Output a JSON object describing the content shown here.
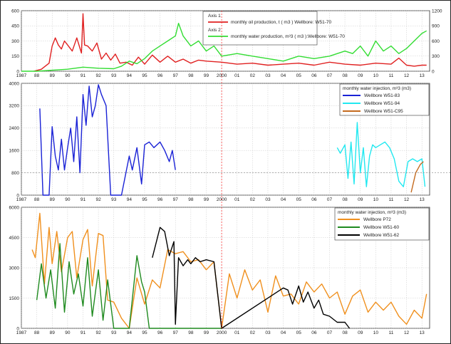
{
  "colors": {
    "oil": "#e02020",
    "water_prod": "#33dd33",
    "w51_83": "#1a22d6",
    "w51_94": "#22e8f0",
    "w51_c95": "#c46a1e",
    "p72": "#f0901e",
    "w51_60": "#1f8a1f",
    "w51_62": "#000000",
    "grid": "#bbbbbb",
    "crosshair": "#ff2222"
  },
  "chart_data": [
    {
      "type": "line",
      "panel": "top",
      "x_ticks": [
        "1987",
        "88",
        "89",
        "90",
        "91",
        "92",
        "93",
        "94",
        "95",
        "96",
        "97",
        "98",
        "99",
        "2000",
        "01",
        "02",
        "03",
        "04",
        "05",
        "06",
        "07",
        "08",
        "09",
        "10",
        "11",
        "12",
        "13"
      ],
      "xlim": [
        1987,
        2013.5
      ],
      "y_ticks_left": [
        "0",
        "150",
        "300",
        "450",
        "600"
      ],
      "ylim_left": [
        0,
        600
      ],
      "y_ticks_right": [
        "0",
        "300",
        "600",
        "900",
        "1200"
      ],
      "ylim_right": [
        0,
        1200
      ],
      "legend": {
        "axis1_label": "Axis 1",
        "axis1_series": "monthly oil production,  t ( m3 ) Wellbore: W51-70",
        "axis2_label": "Axis 2",
        "axis2_series": "monthly water production,  m³3 ( m3 ):Wellbore: W51-70"
      },
      "series": [
        {
          "key": "oil",
          "axis": "left",
          "x": [
            1987.8,
            1988.3,
            1988.8,
            1989.0,
            1989.2,
            1989.4,
            1989.6,
            1989.8,
            1990.0,
            1990.3,
            1990.6,
            1990.9,
            1991.0,
            1991.1,
            1991.3,
            1991.6,
            1991.9,
            1992.2,
            1992.5,
            1992.8,
            1993.1,
            1993.4,
            1993.8,
            1994.2,
            1994.6,
            1995.0,
            1995.5,
            1996.0,
            1996.5,
            1997.0,
            1997.5,
            1998.0,
            1998.5,
            1999.0,
            2000.0,
            2001.0,
            2002.0,
            2003.0,
            2004.0,
            2005.0,
            2006.0,
            2007.0,
            2008.0,
            2009.0,
            2010.0,
            2011.0,
            2011.5,
            2012.0,
            2012.5,
            2013.0,
            2013.3
          ],
          "y": [
            0,
            20,
            80,
            250,
            330,
            260,
            220,
            300,
            260,
            200,
            330,
            180,
            570,
            260,
            250,
            200,
            280,
            120,
            180,
            110,
            170,
            80,
            90,
            60,
            140,
            70,
            160,
            90,
            150,
            90,
            120,
            80,
            110,
            100,
            90,
            70,
            80,
            60,
            70,
            80,
            60,
            90,
            70,
            60,
            80,
            70,
            130,
            60,
            50,
            60,
            60
          ]
        },
        {
          "key": "water_prod",
          "axis": "right",
          "x": [
            1987.0,
            1988.0,
            1989.0,
            1990.0,
            1991.0,
            1992.0,
            1993.0,
            1993.5,
            1994.0,
            1994.5,
            1995.0,
            1995.5,
            1996.0,
            1996.5,
            1997.0,
            1997.2,
            1997.5,
            1998.0,
            1998.5,
            1999.0,
            1999.5,
            2000.0,
            2001.0,
            2002.0,
            2003.0,
            2004.0,
            2005.0,
            2006.0,
            2007.0,
            2008.0,
            2008.5,
            2009.0,
            2009.5,
            2010.0,
            2010.5,
            2011.0,
            2011.5,
            2012.0,
            2012.5,
            2013.0,
            2013.3
          ],
          "y": [
            0,
            0,
            20,
            40,
            80,
            60,
            50,
            100,
            200,
            150,
            250,
            400,
            500,
            600,
            700,
            950,
            700,
            500,
            600,
            400,
            500,
            300,
            350,
            300,
            250,
            200,
            300,
            250,
            300,
            400,
            350,
            500,
            300,
            600,
            400,
            500,
            350,
            450,
            600,
            750,
            800
          ]
        }
      ]
    },
    {
      "type": "line",
      "panel": "middle",
      "x_ticks": [
        "1987",
        "88",
        "89",
        "90",
        "91",
        "92",
        "93",
        "94",
        "95",
        "96",
        "97",
        "98",
        "99",
        "2000",
        "01",
        "02",
        "03",
        "04",
        "05",
        "06",
        "07",
        "08",
        "09",
        "10",
        "11",
        "12",
        "13"
      ],
      "xlim": [
        1987,
        2013.5
      ],
      "y_ticks": [
        "0",
        "800",
        "1600",
        "2400",
        "3200",
        "4000"
      ],
      "ylim": [
        0,
        4000
      ],
      "legend": {
        "title": "monthly water injection,  m³3  (m3)",
        "entries": [
          "Wellbore W51-83",
          "Wellbore W51-94",
          "Wellbore W51-C95"
        ]
      },
      "series": [
        {
          "key": "w51_83",
          "x": [
            1988.2,
            1988.4,
            1988.6,
            1988.8,
            1989.0,
            1989.2,
            1989.4,
            1989.6,
            1989.8,
            1990.0,
            1990.2,
            1990.4,
            1990.6,
            1990.8,
            1991.0,
            1991.2,
            1991.4,
            1991.6,
            1991.8,
            1992.0,
            1992.2,
            1992.5,
            1992.8,
            1993.0,
            1993.5,
            1994.0,
            1994.2,
            1994.5,
            1994.8,
            1995.0,
            1995.3,
            1995.6,
            1996.0,
            1996.3,
            1996.6,
            1996.8,
            1997.0
          ],
          "y": [
            3100,
            0,
            0,
            0,
            2450,
            1400,
            900,
            2000,
            900,
            1700,
            2400,
            1200,
            2800,
            800,
            3600,
            2500,
            3900,
            2800,
            3200,
            3950,
            3600,
            3200,
            0,
            0,
            0,
            1400,
            900,
            1700,
            400,
            1800,
            1900,
            1700,
            1900,
            1600,
            1200,
            1600,
            900
          ]
        },
        {
          "key": "w51_94",
          "x": [
            2007.5,
            2007.7,
            2008.0,
            2008.2,
            2008.4,
            2008.6,
            2008.8,
            2009.0,
            2009.2,
            2009.4,
            2009.6,
            2009.8,
            2010.0,
            2010.3,
            2010.6,
            2010.9,
            2011.2,
            2011.5,
            2011.8,
            2012.1,
            2012.4,
            2012.7,
            2013.0,
            2013.2
          ],
          "y": [
            1700,
            1500,
            1800,
            600,
            1900,
            400,
            2600,
            800,
            1700,
            300,
            1400,
            1800,
            1700,
            1800,
            1900,
            1700,
            1300,
            500,
            300,
            1200,
            1300,
            1200,
            1300,
            300
          ]
        },
        {
          "key": "w51_c95",
          "x": [
            2012.3,
            2012.6,
            2012.9,
            2013.1
          ],
          "y": [
            100,
            800,
            1100,
            1200
          ]
        }
      ]
    },
    {
      "type": "line",
      "panel": "bottom",
      "x_ticks": [
        "1987",
        "88",
        "89",
        "90",
        "91",
        "92",
        "93",
        "94",
        "95",
        "96",
        "97",
        "98",
        "99",
        "2000",
        "01",
        "02",
        "03",
        "04",
        "05",
        "06",
        "07",
        "08",
        "09",
        "10",
        "11",
        "12",
        "13"
      ],
      "xlim": [
        1987,
        2013.5
      ],
      "y_ticks": [
        "0",
        "1500",
        "3000",
        "4500",
        "6000"
      ],
      "ylim": [
        0,
        6000
      ],
      "legend": {
        "title": "monthly water injection,  m³3  (m3)",
        "entries": [
          "Wellbore P72",
          "Wellbore W51-60",
          "Wellbore W51-62"
        ]
      },
      "series": [
        {
          "key": "p72",
          "x": [
            1987.7,
            1987.9,
            1988.2,
            1988.5,
            1988.8,
            1989.0,
            1989.3,
            1989.6,
            1990.0,
            1990.3,
            1990.6,
            1991.0,
            1991.3,
            1991.6,
            1992.0,
            1992.3,
            1992.6,
            1993.0,
            1993.5,
            1994.0,
            1994.5,
            1995.0,
            1995.5,
            1996.0,
            1996.5,
            1997.0,
            1997.5,
            1998.0,
            1998.5,
            1999.0,
            1999.5,
            2000.0,
            2000.5,
            2001.0,
            2001.5,
            2002.0,
            2002.5,
            2003.0,
            2003.5,
            2004.0,
            2004.5,
            2005.0,
            2005.5,
            2006.0,
            2006.5,
            2007.0,
            2007.5,
            2008.0,
            2008.5,
            2009.0,
            2009.5,
            2010.0,
            2010.5,
            2011.0,
            2011.5,
            2012.0,
            2012.5,
            2013.0,
            2013.3
          ],
          "y": [
            3900,
            3500,
            5700,
            2200,
            5000,
            3200,
            4800,
            2800,
            4500,
            4800,
            2500,
            4400,
            4900,
            2100,
            4700,
            4600,
            1400,
            1300,
            500,
            0,
            2500,
            1200,
            2400,
            2000,
            3900,
            3700,
            3800,
            3300,
            3400,
            2900,
            3300,
            0,
            2700,
            1500,
            2900,
            1900,
            2400,
            800,
            2600,
            1600,
            1700,
            1200,
            2300,
            1800,
            2200,
            1500,
            1800,
            700,
            1600,
            1900,
            800,
            1300,
            900,
            1300,
            600,
            200,
            900,
            500,
            1700
          ]
        },
        {
          "key": "w51_60",
          "x": [
            1988.0,
            1988.3,
            1988.6,
            1988.9,
            1989.2,
            1989.5,
            1989.8,
            1990.1,
            1990.4,
            1990.7,
            1991.0,
            1991.3,
            1991.6,
            1992.0,
            1992.3,
            1992.6,
            1993.0,
            1994.0,
            1994.5,
            1994.8,
            1995.0,
            1995.3,
            2000.0
          ],
          "y": [
            1400,
            3200,
            1500,
            2900,
            1000,
            4200,
            800,
            3300,
            1700,
            2700,
            1100,
            3500,
            600,
            2900,
            400,
            2400,
            0,
            0,
            3600,
            2300,
            1800,
            0,
            0
          ]
        },
        {
          "key": "w51_62",
          "x": [
            1995.5,
            1995.8,
            1996.0,
            1996.3,
            1996.6,
            1996.9,
            1997.0,
            1997.2,
            1997.5,
            1997.8,
            1998.0,
            1998.3,
            1998.6,
            1999.0,
            1999.5,
            2000.0,
            2004.0,
            2004.3,
            2004.6,
            2005.0,
            2005.3,
            2005.6,
            2006.0,
            2006.3,
            2006.6,
            2007.0,
            2007.5,
            2008.0,
            2008.3
          ],
          "y": [
            3500,
            4400,
            5000,
            4800,
            3600,
            4300,
            200,
            3500,
            3100,
            3400,
            3200,
            3500,
            3300,
            3400,
            3300,
            0,
            2000,
            1900,
            1200,
            2100,
            1300,
            1800,
            1000,
            1400,
            700,
            600,
            300,
            300,
            0
          ]
        }
      ]
    }
  ]
}
